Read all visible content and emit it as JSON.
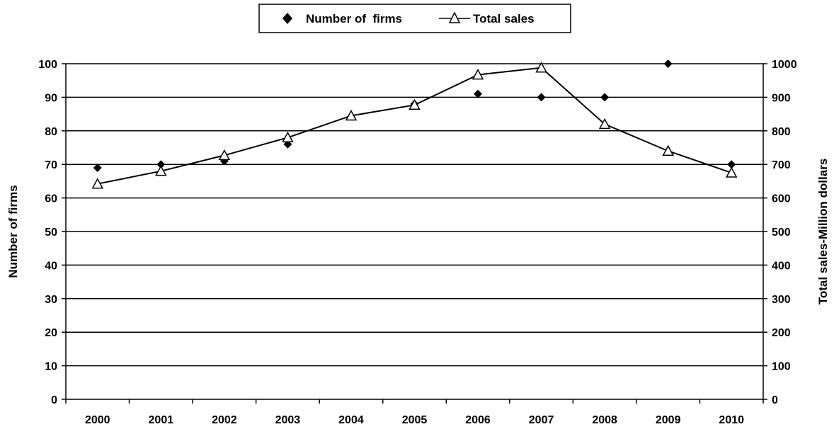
{
  "chart_data": {
    "type": "line",
    "categories": [
      "2000",
      "2001",
      "2002",
      "2003",
      "2004",
      "2005",
      "2006",
      "2007",
      "2008",
      "2009",
      "2010"
    ],
    "series": [
      {
        "name": "Number of  firms",
        "axis": "left",
        "marker": "filled-diamond",
        "line": false,
        "values": [
          69,
          70,
          71,
          76,
          null,
          88,
          91,
          90,
          90,
          100,
          70
        ]
      },
      {
        "name": "Total sales",
        "axis": "right",
        "marker": "open-triangle",
        "line": true,
        "values": [
          642,
          680,
          727,
          780,
          845,
          877,
          967,
          988,
          820,
          740,
          675
        ]
      }
    ],
    "ylabel": "Number of firms",
    "ylabel_right": "Total sales-Million dollars",
    "ylim": [
      0,
      100
    ],
    "ylim_right": [
      0,
      1000
    ],
    "yticks": [
      "0",
      "10",
      "20",
      "30",
      "40",
      "50",
      "60",
      "70",
      "80",
      "90",
      "100"
    ],
    "yticks_right": [
      "0",
      "100",
      "200",
      "300",
      "400",
      "500",
      "600",
      "700",
      "800",
      "900",
      "1000"
    ],
    "grid": "horizontal",
    "legend_position": "top-center",
    "colors": {
      "marker": "#000000",
      "line": "#000000",
      "marker_fill_open": "#ffffff"
    }
  }
}
